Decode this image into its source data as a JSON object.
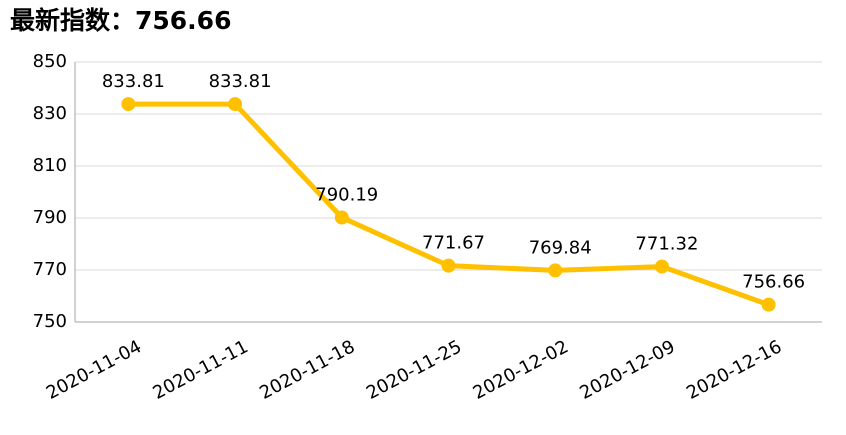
{
  "chart_data": {
    "type": "line",
    "title": "最新指数：756.66",
    "categories": [
      "2020-11-04",
      "2020-11-11",
      "2020-11-18",
      "2020-11-25",
      "2020-12-02",
      "2020-12-09",
      "2020-12-16"
    ],
    "values": [
      833.81,
      833.81,
      790.19,
      771.67,
      769.84,
      771.32,
      756.66
    ],
    "color": "#ffc000",
    "ylim": [
      750,
      850
    ],
    "yticks": [
      750,
      770,
      790,
      810,
      830,
      850
    ],
    "grid": true
  }
}
